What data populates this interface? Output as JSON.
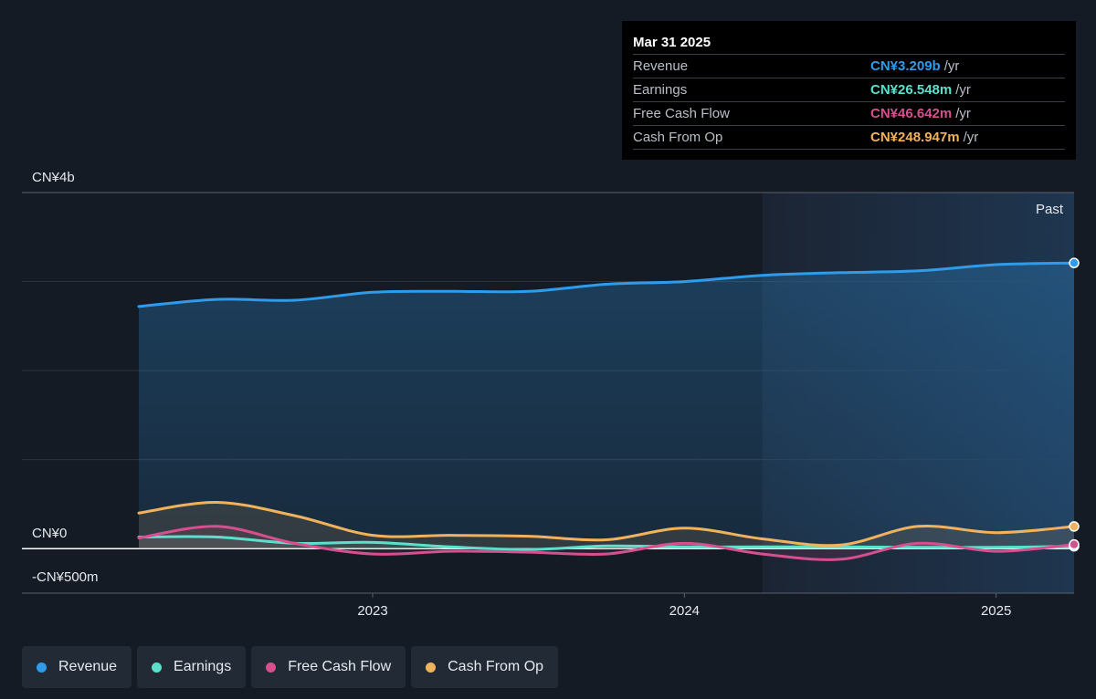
{
  "tooltip": {
    "date": "Mar 31 2025",
    "rows": [
      {
        "label": "Revenue",
        "value": "CN¥3.209b",
        "unit": "/yr",
        "color": "#2f9be9"
      },
      {
        "label": "Earnings",
        "value": "CN¥26.548m",
        "unit": "/yr",
        "color": "#5ce0cd"
      },
      {
        "label": "Free Cash Flow",
        "value": "CN¥46.642m",
        "unit": "/yr",
        "color": "#d64f8f"
      },
      {
        "label": "Cash From Op",
        "value": "CN¥248.947m",
        "unit": "/yr",
        "color": "#f0b25d"
      }
    ]
  },
  "past_label": "Past",
  "legend": [
    {
      "label": "Revenue",
      "color": "#2f9be9"
    },
    {
      "label": "Earnings",
      "color": "#5ce0cd"
    },
    {
      "label": "Free Cash Flow",
      "color": "#d64f8f"
    },
    {
      "label": "Cash From Op",
      "color": "#f0b25d"
    }
  ],
  "chart_data": {
    "type": "line",
    "unit": "CN¥ millions",
    "y_tick_labels": [
      {
        "value": 4000,
        "label": "CN¥4b"
      },
      {
        "value": 0,
        "label": "CN¥0"
      },
      {
        "value": -500,
        "label": "-CN¥500m"
      }
    ],
    "ylim": [
      -500,
      4000
    ],
    "x_tick_labels": [
      {
        "value": 2023.0,
        "label": "2023"
      },
      {
        "value": 2024.0,
        "label": "2024"
      },
      {
        "value": 2025.0,
        "label": "2025"
      }
    ],
    "xlim": [
      2021.875,
      2025.25
    ],
    "highlight_start": 2024.25,
    "x": [
      2022.25,
      2022.5,
      2022.75,
      2023.0,
      2023.25,
      2023.5,
      2023.75,
      2024.0,
      2024.25,
      2024.5,
      2024.75,
      2025.0,
      2025.25
    ],
    "series": [
      {
        "name": "Revenue",
        "color": "#2f9be9",
        "values": [
          2720,
          2800,
          2790,
          2880,
          2890,
          2890,
          2970,
          3000,
          3070,
          3100,
          3120,
          3190,
          3209
        ]
      },
      {
        "name": "Earnings",
        "color": "#5ce0cd",
        "values": [
          130,
          130,
          60,
          70,
          20,
          -10,
          30,
          20,
          20,
          20,
          15,
          15,
          26.548
        ]
      },
      {
        "name": "Free Cash Flow",
        "color": "#d64f8f",
        "values": [
          120,
          250,
          60,
          -60,
          -30,
          -40,
          -60,
          60,
          -60,
          -120,
          60,
          -30,
          46.642
        ]
      },
      {
        "name": "Cash From Op",
        "color": "#f0b25d",
        "values": [
          400,
          520,
          370,
          150,
          150,
          140,
          100,
          230,
          110,
          40,
          250,
          180,
          248.947
        ]
      }
    ]
  }
}
